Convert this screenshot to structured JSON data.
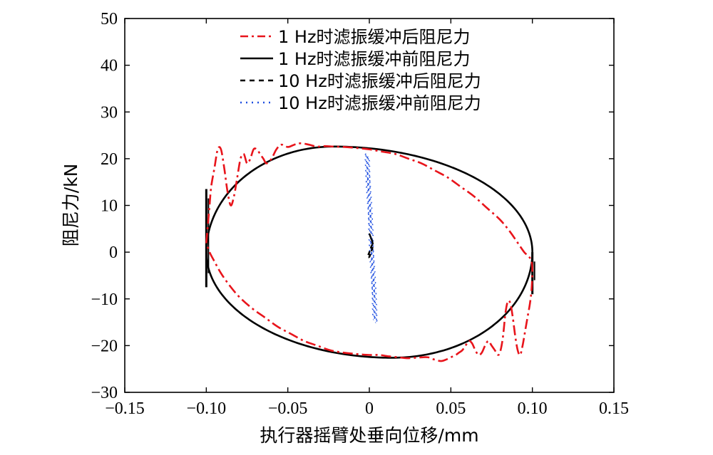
{
  "chart_data": {
    "type": "line",
    "title": "",
    "xlabel": "执行器摇臂处垂向位移/mm",
    "ylabel": "阻尼力/kN",
    "xlim": [
      -0.15,
      0.15
    ],
    "ylim": [
      -30,
      50
    ],
    "xticks": [
      -0.15,
      -0.1,
      -0.05,
      0,
      0.05,
      0.1,
      0.15
    ],
    "xtick_labels": [
      "−0.15",
      "−0.10",
      "−0.05",
      "0",
      "0.05",
      "0.10",
      "0.15"
    ],
    "yticks": [
      -30,
      -20,
      -10,
      0,
      10,
      20,
      30,
      40,
      50
    ],
    "ytick_labels": [
      "−30",
      "−20",
      "−10",
      "0",
      "10",
      "20",
      "30",
      "40",
      "50"
    ],
    "grid": false,
    "legend_position": "top-right",
    "series": [
      {
        "name": "1 Hz时滤振缓冲后阻尼力",
        "style": "dash-dot",
        "color": "#e8141b",
        "x": [
          -0.1,
          -0.099,
          -0.098,
          -0.097,
          -0.095,
          -0.093,
          -0.091,
          -0.089,
          -0.087,
          -0.085,
          -0.083,
          -0.081,
          -0.079,
          -0.077,
          -0.075,
          -0.073,
          -0.071,
          -0.069,
          -0.067,
          -0.065,
          -0.063,
          -0.06,
          -0.057,
          -0.054,
          -0.05,
          -0.046,
          -0.042,
          -0.037,
          -0.032,
          -0.027,
          -0.022,
          -0.015,
          -0.008,
          0.0,
          0.008,
          0.016,
          0.024,
          0.032,
          0.04,
          0.048,
          0.056,
          0.064,
          0.072,
          0.08,
          0.086,
          0.091,
          0.095,
          0.098,
          0.0995,
          0.1,
          0.0995,
          0.0985,
          0.097,
          0.0955,
          0.094,
          0.0925,
          0.091,
          0.0895,
          0.088,
          0.0865,
          0.085,
          0.0835,
          0.082,
          0.0805,
          0.079,
          0.077,
          0.075,
          0.073,
          0.071,
          0.069,
          0.067,
          0.065,
          0.063,
          0.061,
          0.059,
          0.057,
          0.055,
          0.053,
          0.05,
          0.047,
          0.044,
          0.04,
          0.036,
          0.032,
          0.028,
          0.023,
          0.018,
          0.012,
          0.006,
          0.0,
          -0.008,
          -0.016,
          -0.024,
          -0.032,
          -0.04,
          -0.048,
          -0.056,
          -0.064,
          -0.072,
          -0.08,
          -0.086,
          -0.091,
          -0.095,
          -0.098,
          -0.1
        ],
        "y": [
          2,
          6,
          10,
          14,
          18,
          22,
          22,
          18,
          13,
          10,
          12,
          16,
          20,
          21,
          19,
          20,
          22,
          22,
          21,
          20,
          19,
          20,
          22,
          23,
          22.5,
          23,
          23.3,
          23,
          22.6,
          22.7,
          22.6,
          22.5,
          22.3,
          22,
          21.5,
          21,
          20,
          19,
          17.5,
          16,
          14,
          12,
          9.5,
          7,
          4.5,
          2,
          0,
          -1,
          -2,
          -4,
          -8,
          -11,
          -14,
          -17,
          -20,
          -22,
          -21,
          -18,
          -14,
          -11,
          -10.5,
          -13,
          -18,
          -21,
          -22,
          -21,
          -20,
          -19,
          -20,
          -21.5,
          -22,
          -21,
          -19.5,
          -19,
          -20,
          -21,
          -21.5,
          -22,
          -22.5,
          -23,
          -23.3,
          -23,
          -22.5,
          -22.5,
          -22.6,
          -22.7,
          -22.5,
          -22.3,
          -22,
          -22,
          -21.8,
          -21.5,
          -21,
          -20,
          -19,
          -17.5,
          -16,
          -14,
          -12,
          -9.5,
          -7,
          -4.5,
          -2,
          0,
          2
        ]
      },
      {
        "name": "1 Hz时滤振缓冲前阻尼力",
        "style": "solid",
        "color": "#000000",
        "ellipse": {
          "x_min": -0.1,
          "x_max": 0.1,
          "peak_y": 22.6,
          "peak_x": -0.022,
          "trough_y": -22.6,
          "trough_x": 0.014
        },
        "spikes": [
          {
            "x": -0.1,
            "y_from": -7.5,
            "y_to": 13.5
          },
          {
            "x": 0.1,
            "y_from": -9.0,
            "y_to": 0.0
          }
        ]
      },
      {
        "name": "10 Hz时滤振缓冲后阻尼力",
        "style": "dash",
        "color": "#000000",
        "x": [
          0.0,
          0.001,
          0.002,
          0.002,
          0.001,
          0.0,
          -0.001,
          0.0,
          0.001,
          0.002,
          0.001,
          0.0
        ],
        "y": [
          4,
          3,
          2,
          1,
          0,
          -1,
          -1,
          0,
          1,
          2,
          3,
          4
        ]
      },
      {
        "name": "10 Hz时滤振缓冲前阻尼力",
        "style": "dotted",
        "color": "#1f4fe0",
        "x_range": [
          -0.002,
          0.003
        ],
        "y_range": [
          -14.5,
          21
        ]
      }
    ]
  }
}
